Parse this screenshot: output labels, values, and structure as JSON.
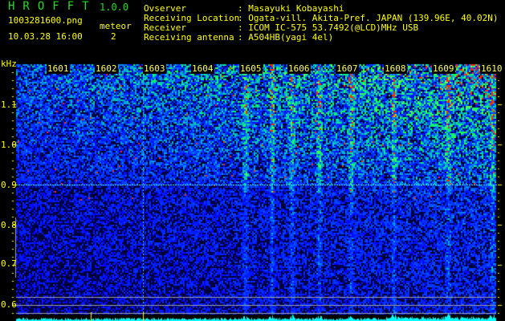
{
  "header": {
    "title": "HROFFT",
    "version": "1.0.0",
    "filename": "1003281600.png",
    "datetime": "10.03.28 16:00",
    "meteor_label": "meteor",
    "meteor_count": "2"
  },
  "info": [
    {
      "key": "Ovserver",
      "value": ": Masayuki Kobayashi"
    },
    {
      "key": "Receiving Location",
      "value": ": Ogata-vill. Akita-Pref. JAPAN (139.96E, 40.02N)"
    },
    {
      "key": "Receiver",
      "value": ": ICOM IC-575 53.7492(@LCD)MHz USB"
    },
    {
      "key": "Receiving antenna",
      "value": ": A504HB(yagi 4el)"
    }
  ],
  "chart_data": {
    "type": "heatmap",
    "ylabel": "kHz",
    "y_ticks": [
      "1.1",
      "1.0",
      "0.9",
      "0.8",
      "0.7",
      "0.6"
    ],
    "ylim": [
      0.58,
      1.18
    ],
    "x_ticks": [
      "1601",
      "1602",
      "1603",
      "1604",
      "1605",
      "1606",
      "1607",
      "1608",
      "1609",
      "1610"
    ],
    "colors": {
      "low": "#000020",
      "mid": "#0020ff",
      "high": "#00ffff",
      "peak": "#00ff00",
      "max": "#ff2000",
      "reference_line": "#40ffff",
      "histogram": "#00ffff"
    }
  }
}
